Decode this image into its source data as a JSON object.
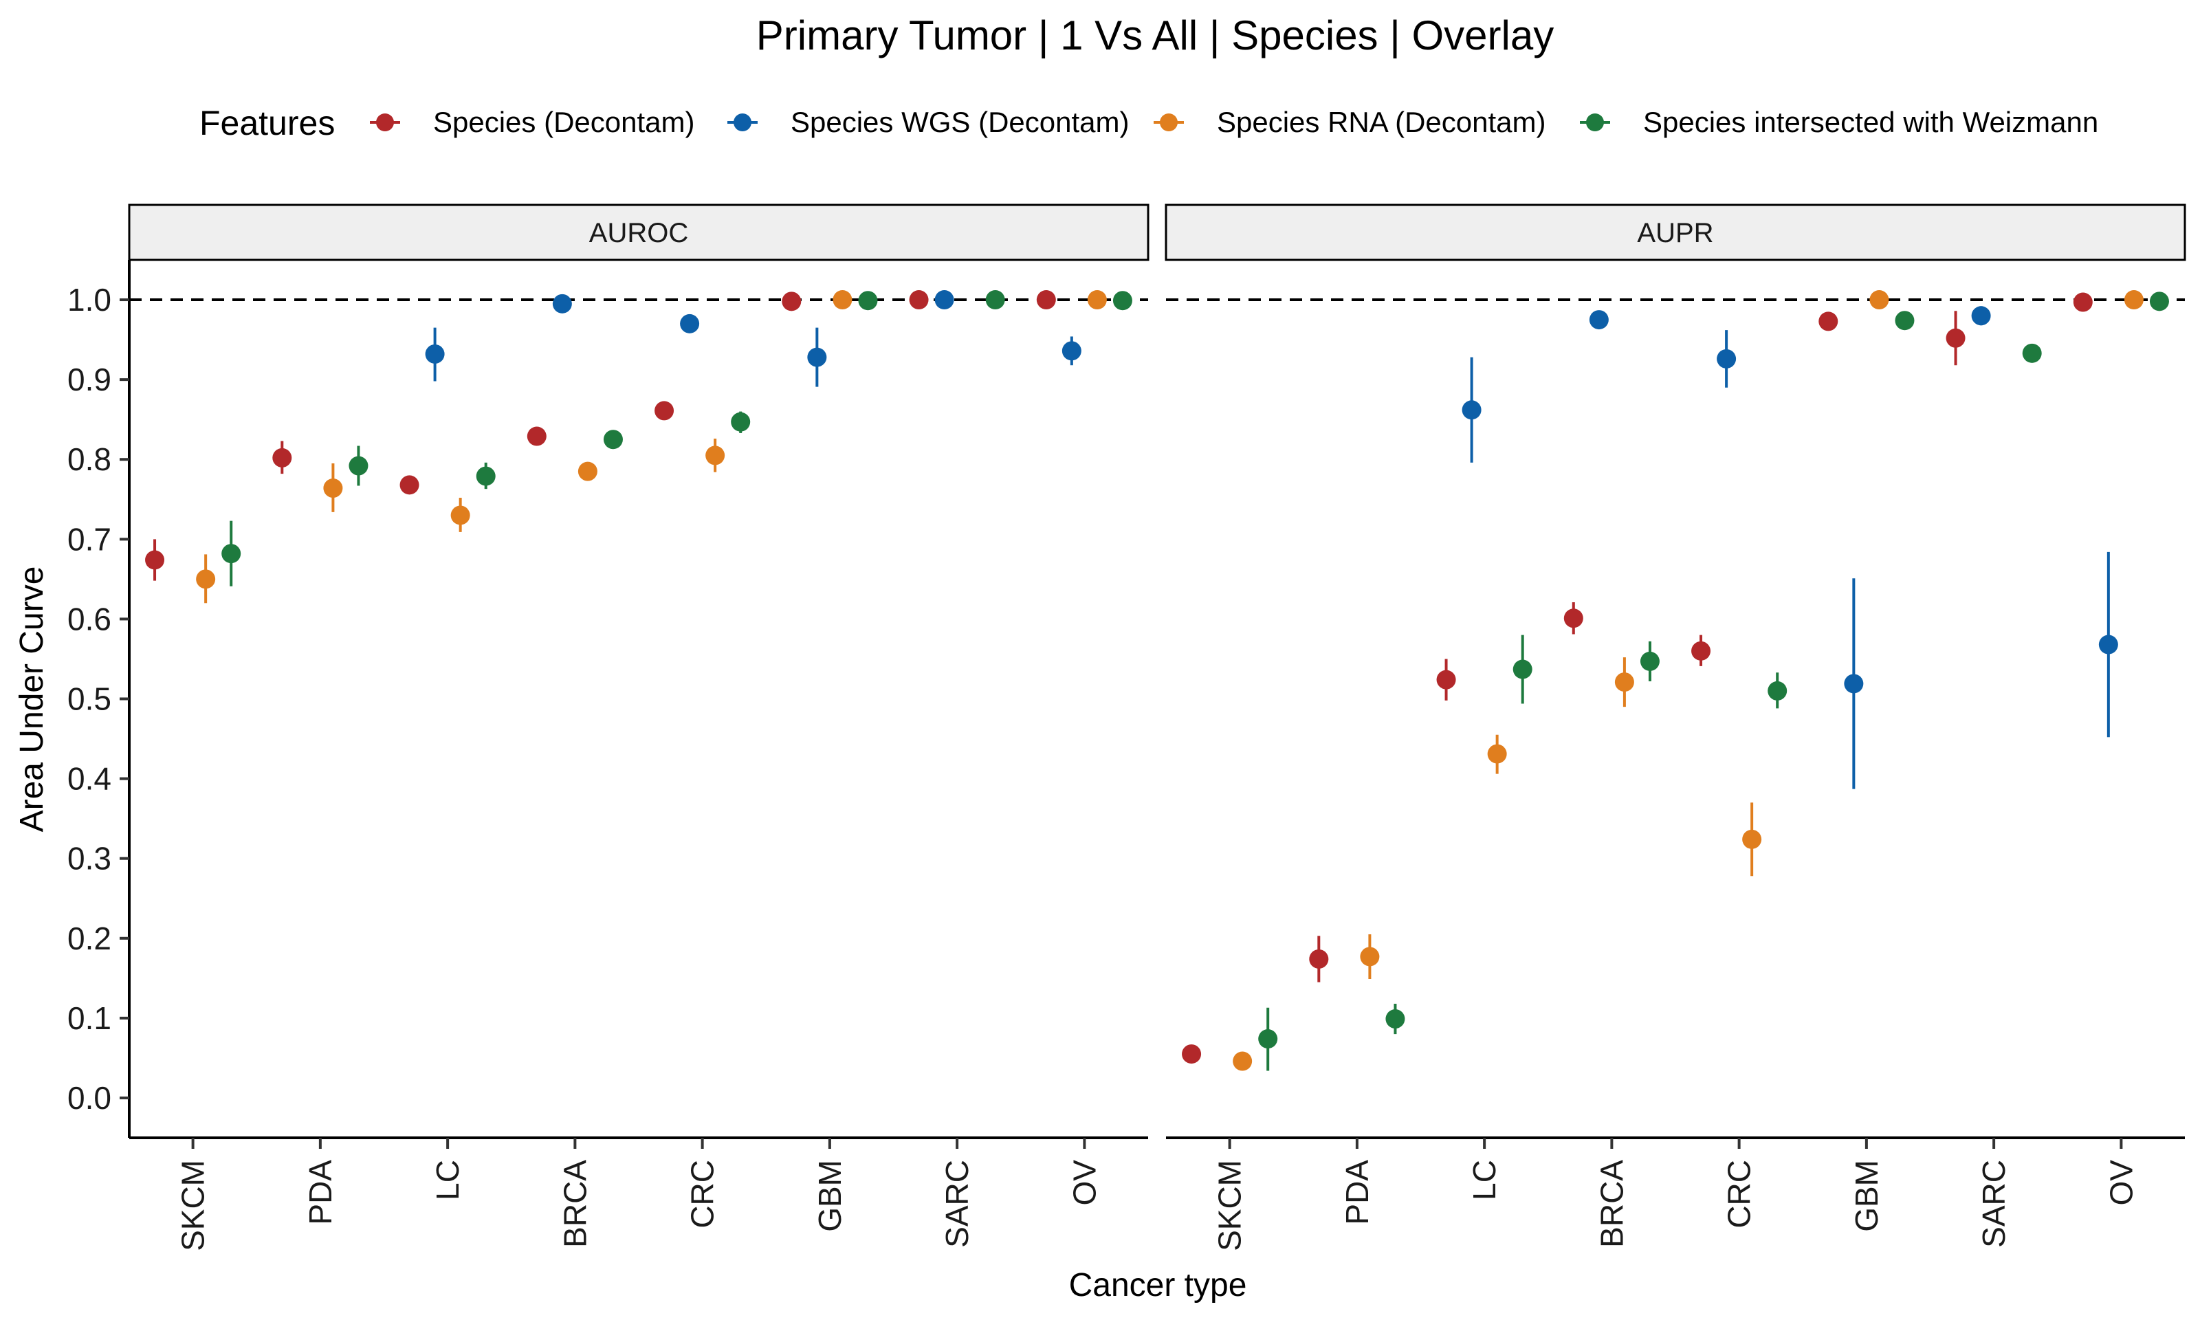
{
  "chart_data": {
    "type": "scatter",
    "title": "Primary Tumor | 1 Vs All | Species | Overlay",
    "xlabel": "Cancer type",
    "ylabel": "Area Under Curve",
    "ylim": [
      -0.05,
      1.05
    ],
    "yticks": [
      "0.0",
      "0.1",
      "0.2",
      "0.3",
      "0.4",
      "0.5",
      "0.6",
      "0.7",
      "0.8",
      "0.9",
      "1.0"
    ],
    "reference_line": 1.0,
    "legend_title": "Features",
    "legend_position": "top",
    "grid": false,
    "categories": [
      "SKCM",
      "PDA",
      "LC",
      "BRCA",
      "CRC",
      "GBM",
      "SARC",
      "OV"
    ],
    "series": [
      {
        "name": "Species (Decontam)",
        "color": "#B2282A"
      },
      {
        "name": "Species WGS (Decontam)",
        "color": "#0D5FA8"
      },
      {
        "name": "Species RNA (Decontam)",
        "color": "#E07E1E"
      },
      {
        "name": "Species intersected with Weizmann",
        "color": "#1E7A3E"
      }
    ],
    "panels": [
      {
        "name": "AUROC",
        "data": [
          {
            "category": "SKCM",
            "series": 0,
            "y": 0.674,
            "lo": 0.648,
            "hi": 0.7
          },
          {
            "category": "SKCM",
            "series": 2,
            "y": 0.65,
            "lo": 0.62,
            "hi": 0.681
          },
          {
            "category": "SKCM",
            "series": 3,
            "y": 0.682,
            "lo": 0.641,
            "hi": 0.723
          },
          {
            "category": "PDA",
            "series": 0,
            "y": 0.802,
            "lo": 0.782,
            "hi": 0.823
          },
          {
            "category": "PDA",
            "series": 2,
            "y": 0.764,
            "lo": 0.734,
            "hi": 0.795
          },
          {
            "category": "PDA",
            "series": 3,
            "y": 0.792,
            "lo": 0.767,
            "hi": 0.817
          },
          {
            "category": "LC",
            "series": 0,
            "y": 0.768,
            "lo": 0.768,
            "hi": 0.768
          },
          {
            "category": "LC",
            "series": 1,
            "y": 0.932,
            "lo": 0.898,
            "hi": 0.965
          },
          {
            "category": "LC",
            "series": 2,
            "y": 0.73,
            "lo": 0.709,
            "hi": 0.752
          },
          {
            "category": "LC",
            "series": 3,
            "y": 0.779,
            "lo": 0.763,
            "hi": 0.796
          },
          {
            "category": "BRCA",
            "series": 0,
            "y": 0.829,
            "lo": 0.829,
            "hi": 0.829
          },
          {
            "category": "BRCA",
            "series": 1,
            "y": 0.995,
            "lo": 0.995,
            "hi": 0.995
          },
          {
            "category": "BRCA",
            "series": 2,
            "y": 0.785,
            "lo": 0.785,
            "hi": 0.785
          },
          {
            "category": "BRCA",
            "series": 3,
            "y": 0.825,
            "lo": 0.825,
            "hi": 0.825
          },
          {
            "category": "CRC",
            "series": 0,
            "y": 0.861,
            "lo": 0.861,
            "hi": 0.861
          },
          {
            "category": "CRC",
            "series": 1,
            "y": 0.97,
            "lo": 0.97,
            "hi": 0.97
          },
          {
            "category": "CRC",
            "series": 2,
            "y": 0.805,
            "lo": 0.784,
            "hi": 0.826
          },
          {
            "category": "CRC",
            "series": 3,
            "y": 0.847,
            "lo": 0.833,
            "hi": 0.86
          },
          {
            "category": "GBM",
            "series": 0,
            "y": 0.998,
            "lo": 0.998,
            "hi": 0.998
          },
          {
            "category": "GBM",
            "series": 1,
            "y": 0.928,
            "lo": 0.891,
            "hi": 0.965
          },
          {
            "category": "GBM",
            "series": 2,
            "y": 1.0,
            "lo": 1.0,
            "hi": 1.0
          },
          {
            "category": "GBM",
            "series": 3,
            "y": 0.999,
            "lo": 0.999,
            "hi": 0.999
          },
          {
            "category": "SARC",
            "series": 0,
            "y": 1.0,
            "lo": 1.0,
            "hi": 1.0
          },
          {
            "category": "SARC",
            "series": 1,
            "y": 1.0,
            "lo": 1.0,
            "hi": 1.0
          },
          {
            "category": "SARC",
            "series": 3,
            "y": 1.0,
            "lo": 1.0,
            "hi": 1.0
          },
          {
            "category": "OV",
            "series": 0,
            "y": 1.0,
            "lo": 1.0,
            "hi": 1.0
          },
          {
            "category": "OV",
            "series": 1,
            "y": 0.936,
            "lo": 0.918,
            "hi": 0.954
          },
          {
            "category": "OV",
            "series": 2,
            "y": 1.0,
            "lo": 1.0,
            "hi": 1.0
          },
          {
            "category": "OV",
            "series": 3,
            "y": 0.999,
            "lo": 0.999,
            "hi": 0.999
          }
        ]
      },
      {
        "name": "AUPR",
        "data": [
          {
            "category": "SKCM",
            "series": 0,
            "y": 0.055,
            "lo": 0.055,
            "hi": 0.055
          },
          {
            "category": "SKCM",
            "series": 2,
            "y": 0.046,
            "lo": 0.046,
            "hi": 0.046
          },
          {
            "category": "SKCM",
            "series": 3,
            "y": 0.074,
            "lo": 0.034,
            "hi": 0.113
          },
          {
            "category": "PDA",
            "series": 0,
            "y": 0.174,
            "lo": 0.145,
            "hi": 0.203
          },
          {
            "category": "PDA",
            "series": 2,
            "y": 0.177,
            "lo": 0.149,
            "hi": 0.205
          },
          {
            "category": "PDA",
            "series": 3,
            "y": 0.099,
            "lo": 0.08,
            "hi": 0.118
          },
          {
            "category": "LC",
            "series": 0,
            "y": 0.524,
            "lo": 0.498,
            "hi": 0.55
          },
          {
            "category": "LC",
            "series": 1,
            "y": 0.862,
            "lo": 0.796,
            "hi": 0.928
          },
          {
            "category": "LC",
            "series": 2,
            "y": 0.431,
            "lo": 0.406,
            "hi": 0.455
          },
          {
            "category": "LC",
            "series": 3,
            "y": 0.537,
            "lo": 0.494,
            "hi": 0.58
          },
          {
            "category": "BRCA",
            "series": 0,
            "y": 0.601,
            "lo": 0.581,
            "hi": 0.621
          },
          {
            "category": "BRCA",
            "series": 1,
            "y": 0.975,
            "lo": 0.975,
            "hi": 0.975
          },
          {
            "category": "BRCA",
            "series": 2,
            "y": 0.521,
            "lo": 0.49,
            "hi": 0.552
          },
          {
            "category": "BRCA",
            "series": 3,
            "y": 0.547,
            "lo": 0.522,
            "hi": 0.572
          },
          {
            "category": "CRC",
            "series": 0,
            "y": 0.56,
            "lo": 0.541,
            "hi": 0.58
          },
          {
            "category": "CRC",
            "series": 1,
            "y": 0.926,
            "lo": 0.89,
            "hi": 0.962
          },
          {
            "category": "CRC",
            "series": 2,
            "y": 0.324,
            "lo": 0.278,
            "hi": 0.37
          },
          {
            "category": "CRC",
            "series": 3,
            "y": 0.51,
            "lo": 0.488,
            "hi": 0.533
          },
          {
            "category": "GBM",
            "series": 0,
            "y": 0.973,
            "lo": 0.973,
            "hi": 0.973
          },
          {
            "category": "GBM",
            "series": 1,
            "y": 0.519,
            "lo": 0.387,
            "hi": 0.651
          },
          {
            "category": "GBM",
            "series": 2,
            "y": 1.0,
            "lo": 1.0,
            "hi": 1.0
          },
          {
            "category": "GBM",
            "series": 3,
            "y": 0.974,
            "lo": 0.974,
            "hi": 0.974
          },
          {
            "category": "SARC",
            "series": 0,
            "y": 0.952,
            "lo": 0.918,
            "hi": 0.986
          },
          {
            "category": "SARC",
            "series": 1,
            "y": 0.98,
            "lo": 0.968,
            "hi": 0.992
          },
          {
            "category": "SARC",
            "series": 3,
            "y": 0.933,
            "lo": 0.933,
            "hi": 0.933
          },
          {
            "category": "OV",
            "series": 0,
            "y": 0.997,
            "lo": 0.997,
            "hi": 0.997
          },
          {
            "category": "OV",
            "series": 1,
            "y": 0.568,
            "lo": 0.452,
            "hi": 0.684
          },
          {
            "category": "OV",
            "series": 2,
            "y": 1.0,
            "lo": 1.0,
            "hi": 1.0
          },
          {
            "category": "OV",
            "series": 3,
            "y": 0.998,
            "lo": 0.998,
            "hi": 0.998
          }
        ]
      }
    ]
  }
}
